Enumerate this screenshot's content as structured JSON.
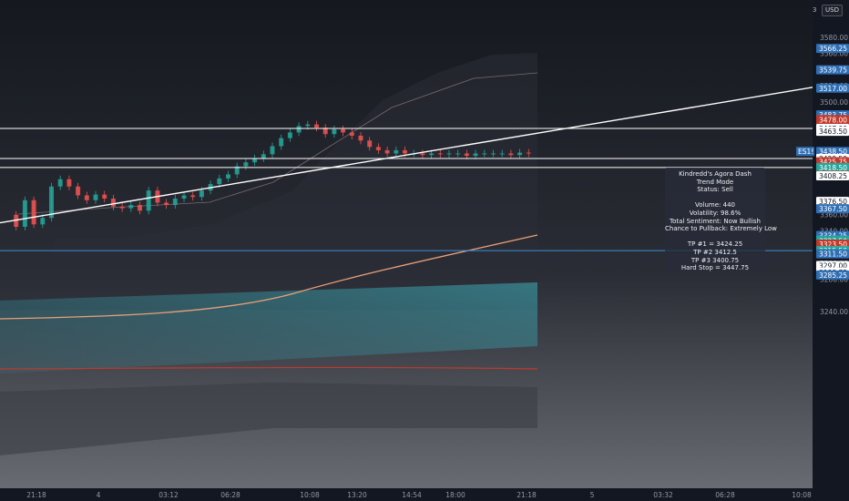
{
  "currency": "USD",
  "axis_top_text": "3",
  "symbol_tag": "ES1!",
  "dashboard": {
    "lines": [
      "Kindredd's Agora Dash",
      "Trend Mode",
      "Status: Sell",
      "",
      "Volume: 440",
      "Volatility: 98.6%",
      "Total Sentiment: Now Bullish",
      "Chance to Pullback: Extremely Low",
      "",
      "TP #1 = 3424.25",
      "TP #2 3412.5",
      "TP #3 3400.75",
      "Hard Stop = 3447.75"
    ]
  },
  "chart_data": {
    "type": "line",
    "title": "",
    "y_axis": {
      "plain_ticks": [
        "3580.00",
        "3560.00",
        "3520.00",
        "3500.00",
        "3480.00",
        "3360.00",
        "3340.00",
        "3300.00",
        "3280.00",
        "3240.00"
      ],
      "price_tags": [
        {
          "text": "3566.25",
          "color": "#2f6fb5"
        },
        {
          "text": "3539.75",
          "color": "#2f6fb5"
        },
        {
          "text": "3517.00",
          "color": "#2f6fb5"
        },
        {
          "text": "3483.75",
          "color": "#2f6fb5"
        },
        {
          "text": "3478.00",
          "color": "#c0392b"
        },
        {
          "text": "3467.00",
          "color": "#ffffff"
        },
        {
          "text": "3463.50",
          "color": "#ffffff"
        },
        {
          "text": "3438.50",
          "color": "#2f6fb5"
        },
        {
          "text": "3429.75",
          "color": "#ffffff"
        },
        {
          "text": "3429.50",
          "color": "#ffffff"
        },
        {
          "text": "3425.75",
          "color": "#c0392b"
        },
        {
          "text": "3418.50",
          "color": "#26a69a"
        },
        {
          "text": "3408.75",
          "color": "#c0392b"
        },
        {
          "text": "3408.25",
          "color": "#ffffff"
        },
        {
          "text": "3376.50",
          "color": "#ffffff"
        },
        {
          "text": "3367.50",
          "color": "#2f6fb5"
        },
        {
          "text": "3334.25",
          "color": "#2f6fb5"
        },
        {
          "text": "3328.25",
          "color": "#26a69a"
        },
        {
          "text": "3328.25",
          "color": "#26a69a"
        },
        {
          "text": "3327.50",
          "color": "#26a69a"
        },
        {
          "text": "3323.50",
          "color": "#c0392b"
        },
        {
          "text": "3315.50",
          "color": "#26a69a"
        },
        {
          "text": "3311.50",
          "color": "#2f6fb5"
        },
        {
          "text": "3297.00",
          "color": "#ffffff"
        },
        {
          "text": "3288.75",
          "color": "#ffffff"
        },
        {
          "text": "3285.25",
          "color": "#2f6fb5"
        }
      ]
    },
    "x_axis": {
      "ticks": [
        "21:18",
        "4",
        "03:12",
        "06:28",
        "10:08",
        "13:20",
        "14:54",
        "18:00",
        "21:18",
        "5",
        "03:32",
        "06:28",
        "10:08"
      ]
    },
    "levels": [
      {
        "price": 3467.0,
        "color": "#ffffff"
      },
      {
        "price": 3429.75,
        "color": "#ffffff"
      },
      {
        "price": 3418.5,
        "color": "#ffffff"
      },
      {
        "price": 3315.5,
        "color": "#3a8fd8"
      }
    ],
    "trendline": {
      "from": [
        3350,
        0
      ],
      "to": [
        3518,
        1
      ],
      "color": "#ffffff"
    },
    "candles_close_path": [
      3360,
      3345,
      3378,
      3348,
      3356,
      3395,
      3404,
      3395,
      3384,
      3378,
      3385,
      3380,
      3370,
      3368,
      3372,
      3365,
      3390,
      3375,
      3372,
      3380,
      3384,
      3382,
      3390,
      3398,
      3405,
      3410,
      3420,
      3425,
      3430,
      3435,
      3445,
      3455,
      3462,
      3470,
      3472,
      3468,
      3460,
      3466,
      3462,
      3458,
      3452,
      3444,
      3440,
      3436,
      3440,
      3436,
      3436,
      3434,
      3436,
      3435,
      3436,
      3436,
      3433,
      3436,
      3436,
      3436,
      3436,
      3434,
      3437,
      3436
    ]
  }
}
